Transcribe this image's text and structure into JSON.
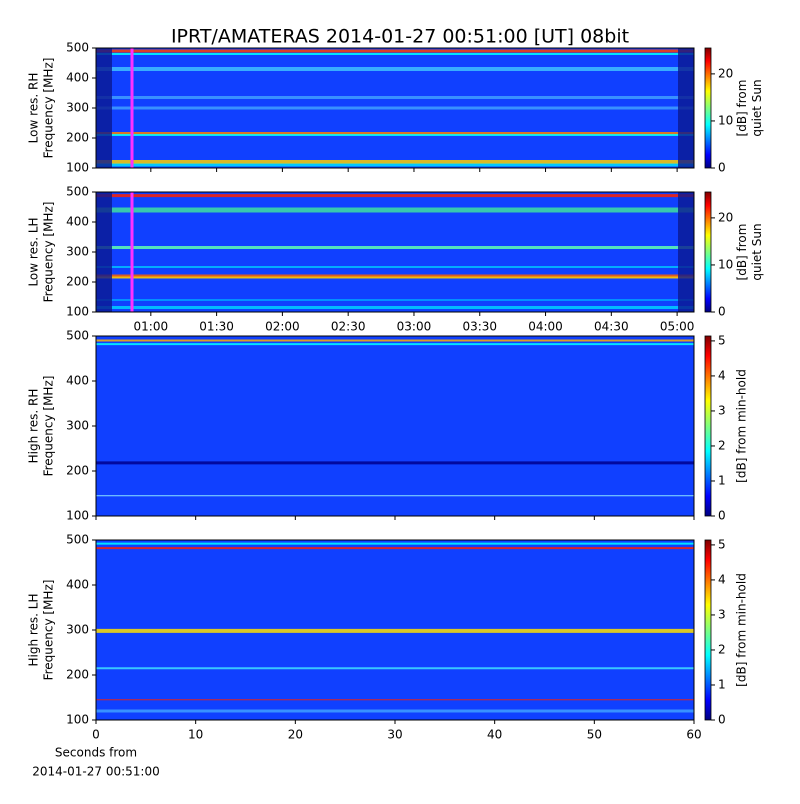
{
  "title": "IPRT/AMATERAS 2014-01-27 00:51:00 [UT]   08bit",
  "chart_data": [
    {
      "type": "heatmap",
      "ylabel": [
        "Low res. RH",
        "Frequency [MHz]"
      ],
      "ylim": [
        100,
        500
      ],
      "yticks": [
        100,
        200,
        300,
        400,
        500
      ],
      "colorbar": {
        "label": [
          "[dB] from",
          "quiet Sun"
        ],
        "lim": [
          0,
          25.5
        ],
        "ticks": [
          0,
          10,
          20
        ]
      }
    },
    {
      "type": "heatmap",
      "ylabel": [
        "Low res. LH",
        "Frequency [MHz]"
      ],
      "ylim": [
        100,
        500
      ],
      "yticks": [
        100,
        200,
        300,
        400,
        500
      ],
      "xlim": [
        35,
        307.7
      ],
      "xticks": [
        {
          "value": 60,
          "label": "01:00"
        },
        {
          "value": 90,
          "label": "01:30"
        },
        {
          "value": 120,
          "label": "02:00"
        },
        {
          "value": 150,
          "label": "02:30"
        },
        {
          "value": 180,
          "label": "03:00"
        },
        {
          "value": 210,
          "label": "03:30"
        },
        {
          "value": 240,
          "label": "04:00"
        },
        {
          "value": 270,
          "label": "04:30"
        },
        {
          "value": 300,
          "label": "05:00"
        }
      ],
      "colorbar": {
        "label": [
          "[dB] from",
          "quiet Sun"
        ],
        "lim": [
          0,
          25.5
        ],
        "ticks": [
          0,
          10,
          20
        ]
      }
    },
    {
      "type": "heatmap",
      "ylabel": [
        "High res. RH",
        "Frequency [MHz]"
      ],
      "ylim": [
        100,
        500
      ],
      "yticks": [
        100,
        200,
        300,
        400,
        500
      ],
      "colorbar": {
        "label": [
          "[dB] from min-hold"
        ],
        "lim": [
          0,
          5.14
        ],
        "ticks": [
          0,
          1,
          2,
          3,
          4,
          5
        ]
      }
    },
    {
      "type": "heatmap",
      "ylabel": [
        "High res. LH",
        "Frequency [MHz]"
      ],
      "ylim": [
        100,
        500
      ],
      "yticks": [
        100,
        200,
        300,
        400,
        500
      ],
      "xlim": [
        0,
        60
      ],
      "xticks": [
        0,
        10,
        20,
        30,
        40,
        50,
        60
      ],
      "xlabel": [
        "Seconds from",
        "2014-01-27 00:51:00"
      ],
      "colorbar": {
        "label": [
          "[dB] from min-hold"
        ],
        "lim": [
          0,
          5.14
        ],
        "ticks": [
          0,
          1,
          2,
          3,
          4,
          5
        ]
      }
    }
  ]
}
